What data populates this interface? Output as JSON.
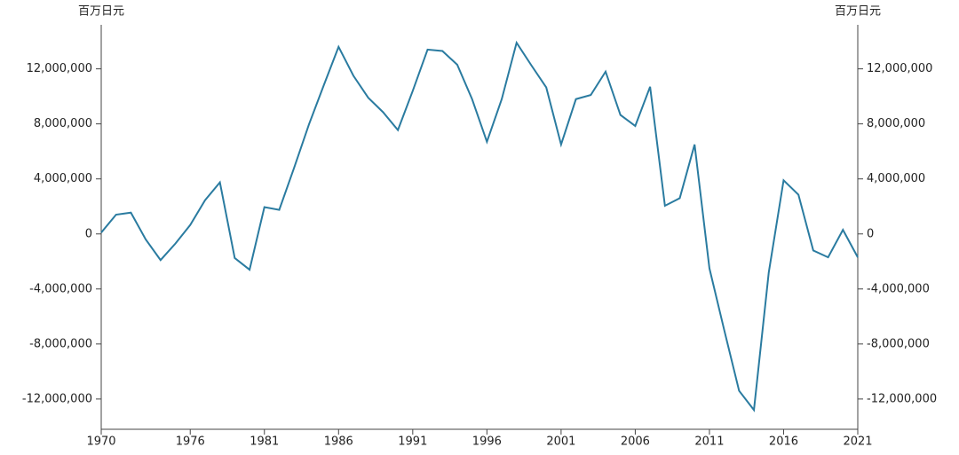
{
  "chart_data": {
    "type": "line",
    "y_label": "百万日元",
    "y2_label": "百万日元",
    "x": [
      1970,
      1971,
      1972,
      1973,
      1974,
      1975,
      1976,
      1977,
      1978,
      1979,
      1980,
      1981,
      1982,
      1983,
      1984,
      1985,
      1986,
      1987,
      1988,
      1989,
      1990,
      1991,
      1992,
      1993,
      1994,
      1995,
      1996,
      1997,
      1998,
      1999,
      2000,
      2001,
      2002,
      2003,
      2004,
      2005,
      2006,
      2007,
      2008,
      2009,
      2010,
      2011,
      2012,
      2013,
      2014,
      2015,
      2016,
      2017,
      2018,
      2019,
      2020,
      2021
    ],
    "series": [
      {
        "color": "#2a7ba0",
        "values": [
          100000,
          1400000,
          1550000,
          -400000,
          -1900000,
          -700000,
          650000,
          2450000,
          3750000,
          -1750000,
          -2600000,
          1950000,
          1750000,
          4800000,
          7950000,
          10800000,
          13600000,
          11500000,
          9900000,
          8850000,
          7550000,
          10400000,
          13400000,
          13300000,
          12300000,
          9800000,
          6700000,
          9800000,
          13900000,
          12250000,
          10650000,
          6500000,
          9800000,
          10100000,
          11800000,
          8650000,
          7850000,
          10700000,
          2050000,
          2600000,
          6500000,
          -2500000,
          -7000000,
          -11400000,
          -12800000,
          -2800000,
          3900000,
          2850000,
          -1200000,
          -1700000,
          300000,
          -1700000
        ]
      }
    ],
    "xlim": [
      1970,
      2021
    ],
    "xticks": [
      1970,
      1976,
      1981,
      1986,
      1991,
      1996,
      2001,
      2006,
      2011,
      2016,
      2021
    ],
    "ylim": [
      -14200000,
      15200000
    ],
    "yticks": [
      {
        "value": -12000000,
        "label": "-12,000,000"
      },
      {
        "value": -8000000,
        "label": "-8,000,000"
      },
      {
        "value": -4000000,
        "label": "-4,000,000"
      },
      0,
      {
        "value": 4000000,
        "label": "4,000,000"
      },
      {
        "value": 8000000,
        "label": "8,000,000"
      },
      {
        "value": 12000000,
        "label": "12,000,000"
      }
    ],
    "y2lim": [
      -14200000,
      15200000
    ],
    "y2ticks": [
      {
        "value": -12000000,
        "label": "-12,000,000"
      },
      {
        "value": -8000000,
        "label": "-8,000,000"
      },
      {
        "value": -4000000,
        "label": "-4,000,000"
      },
      0,
      {
        "value": 4000000,
        "label": "4,000,000"
      },
      {
        "value": 8000000,
        "label": "8,000,000"
      },
      {
        "value": 12000000,
        "label": "12,000,000"
      }
    ]
  }
}
